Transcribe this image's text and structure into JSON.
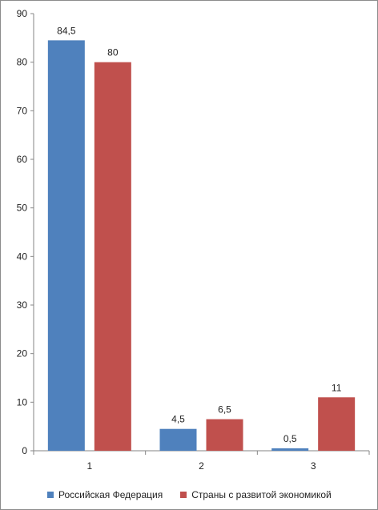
{
  "chart_data": {
    "type": "bar",
    "categories": [
      "1",
      "2",
      "3"
    ],
    "series": [
      {
        "name": "Российская Федерация",
        "values": [
          84.5,
          4.5,
          0.5
        ],
        "labels": [
          "84,5",
          "4,5",
          "0,5"
        ],
        "color": "#4F81BD"
      },
      {
        "name": "Страны с развитой экономикой",
        "values": [
          80,
          6.5,
          11
        ],
        "labels": [
          "80",
          "6,5",
          "11"
        ],
        "color": "#C0504D"
      }
    ],
    "ylim": [
      0,
      90
    ],
    "yticks": [
      "0",
      "10",
      "20",
      "30",
      "40",
      "50",
      "60",
      "70",
      "80",
      "90"
    ],
    "grid": false,
    "legend_position": "bottom",
    "title": "",
    "xlabel": "",
    "ylabel": ""
  },
  "colors": {
    "axis": "#868686",
    "series_1": "#4F81BD",
    "series_2": "#C0504D"
  }
}
